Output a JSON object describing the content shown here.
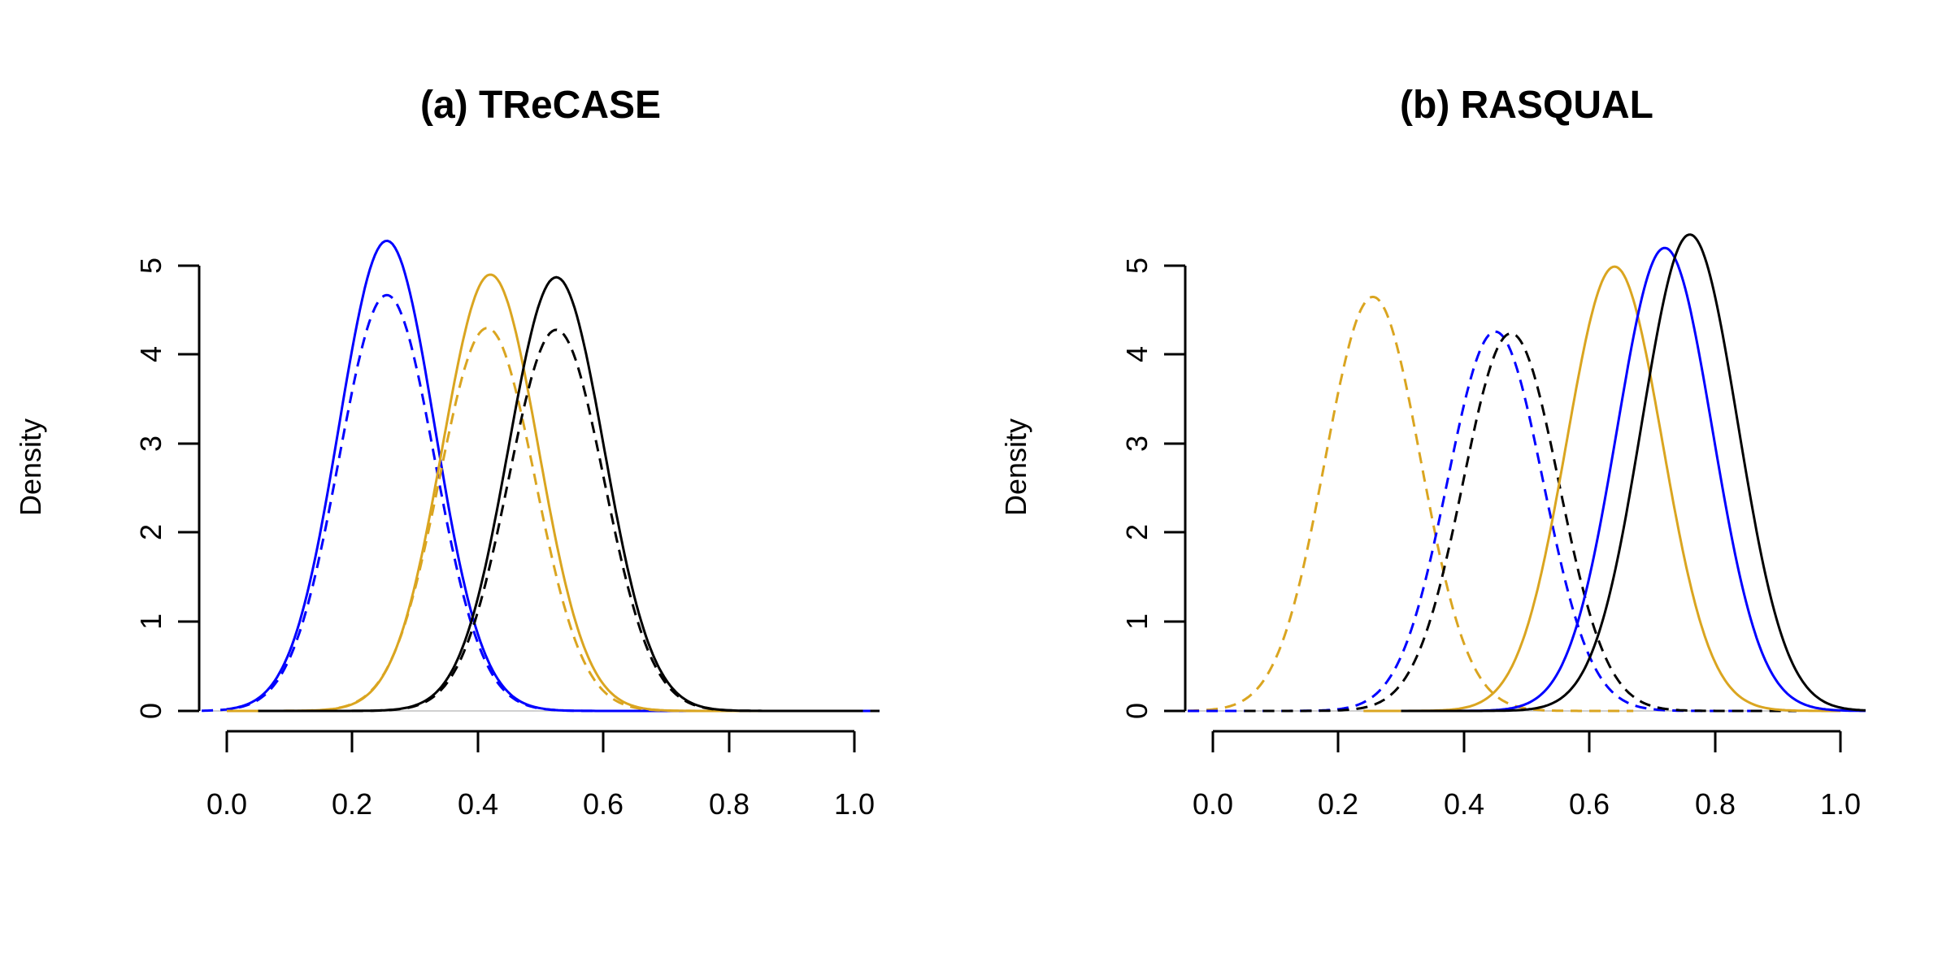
{
  "chart_data": [
    {
      "type": "line",
      "title": "(a) TReCASE",
      "xlabel": "",
      "ylabel": "Density",
      "xlim": [
        -0.04,
        1.04
      ],
      "ylim": [
        0,
        5.4
      ],
      "xticks": [
        "0.0",
        "0.2",
        "0.4",
        "0.6",
        "0.8",
        "1.0"
      ],
      "yticks": [
        "0",
        "1",
        "2",
        "3",
        "4",
        "5"
      ],
      "series": [
        {
          "name": "blue-solid",
          "color": "#0000ff",
          "dash": "solid",
          "mean": 0.255,
          "peak": 5.28,
          "xmin": 0.0,
          "xmax": 1.04
        },
        {
          "name": "blue-dashed",
          "color": "#0000ff",
          "dash": "dashed",
          "mean": 0.255,
          "peak": 4.67,
          "xmin": -0.04,
          "xmax": 0.74
        },
        {
          "name": "gold-solid",
          "color": "#daa520",
          "dash": "solid",
          "mean": 0.42,
          "peak": 4.9,
          "xmin": 0.0,
          "xmax": 0.85
        },
        {
          "name": "gold-dashed",
          "color": "#daa520",
          "dash": "dashed",
          "mean": 0.415,
          "peak": 4.3,
          "xmin": 0.0,
          "xmax": 0.88
        },
        {
          "name": "black-solid",
          "color": "#000000",
          "dash": "solid",
          "mean": 0.525,
          "peak": 4.87,
          "xmin": 0.05,
          "xmax": 1.0
        },
        {
          "name": "black-dashed",
          "color": "#000000",
          "dash": "dashed",
          "mean": 0.525,
          "peak": 4.28,
          "xmin": 0.05,
          "xmax": 1.04
        }
      ]
    },
    {
      "type": "line",
      "title": "(b) RASQUAL",
      "xlabel": "",
      "ylabel": "Density",
      "xlim": [
        -0.04,
        1.04
      ],
      "ylim": [
        0,
        5.4
      ],
      "xticks": [
        "0.0",
        "0.2",
        "0.4",
        "0.6",
        "0.8",
        "1.0"
      ],
      "yticks": [
        "0",
        "1",
        "2",
        "3",
        "4",
        "5"
      ],
      "series": [
        {
          "name": "gold-dashed",
          "color": "#daa520",
          "dash": "dashed",
          "mean": 0.255,
          "peak": 4.65,
          "xmin": -0.04,
          "xmax": 0.67
        },
        {
          "name": "blue-dashed",
          "color": "#0000ff",
          "dash": "dashed",
          "mean": 0.45,
          "peak": 4.26,
          "xmin": -0.04,
          "xmax": 0.87
        },
        {
          "name": "black-dashed",
          "color": "#000000",
          "dash": "dashed",
          "mean": 0.475,
          "peak": 4.24,
          "xmin": 0.05,
          "xmax": 0.93
        },
        {
          "name": "gold-solid",
          "color": "#daa520",
          "dash": "solid",
          "mean": 0.64,
          "peak": 4.99,
          "xmin": 0.24,
          "xmax": 1.0
        },
        {
          "name": "blue-solid",
          "color": "#0000ff",
          "dash": "solid",
          "mean": 0.72,
          "peak": 5.2,
          "xmin": 0.3,
          "xmax": 1.04
        },
        {
          "name": "black-solid",
          "color": "#000000",
          "dash": "solid",
          "mean": 0.76,
          "peak": 5.35,
          "xmin": 0.3,
          "xmax": 1.04
        }
      ]
    }
  ]
}
